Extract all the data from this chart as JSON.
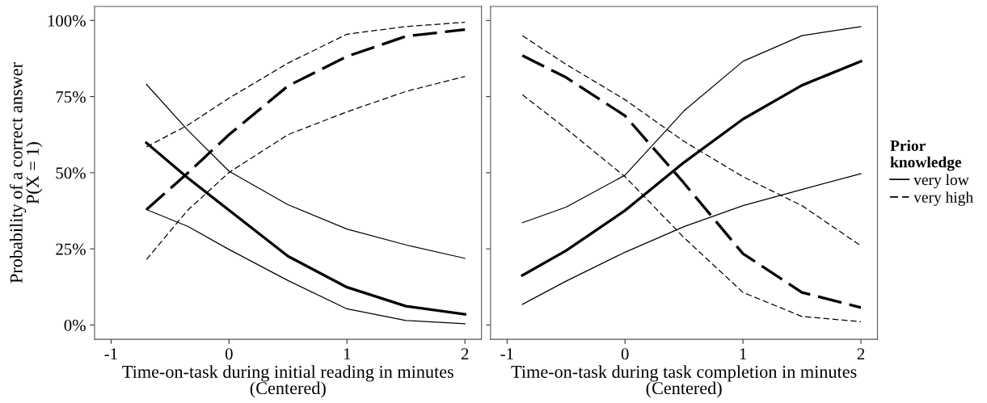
{
  "chart_data": [
    {
      "type": "line",
      "xlabel": "Time-on-task during initial reading in minutes\n(Centered)",
      "ylabel": "Probability of a correct answer\nP(X = 1)",
      "xlim": [
        -1.14,
        2.14
      ],
      "xticks": [
        -1,
        0,
        1,
        2
      ],
      "ylim": [
        -4.7,
        104.6
      ],
      "yticks": [
        {
          "value": 0,
          "label": "0%"
        },
        {
          "value": 25,
          "label": "25%"
        },
        {
          "value": 50,
          "label": "50%"
        },
        {
          "value": 75,
          "label": "75%"
        },
        {
          "value": 100,
          "label": "100%"
        }
      ],
      "grid": false,
      "x": [
        -0.7,
        -0.35,
        0,
        0.5,
        1,
        1.5,
        2
      ],
      "series": [
        {
          "color": "#000000",
          "line_style": "solid",
          "values": [
            59.8,
            48.3,
            37.7,
            22.6,
            12.4,
            6.2,
            3.5
          ]
        },
        {
          "color": "#000000",
          "line_style": "solid",
          "values": [
            37.9,
            32.4,
            24.8,
            14.6,
            5.3,
            1.5,
            0.4
          ]
        },
        {
          "color": "#000000",
          "line_style": "solid",
          "values": [
            79,
            64,
            50.5,
            39.5,
            31.5,
            26.3,
            21.9
          ]
        },
        {
          "color": "#000000",
          "line_style": "dashed",
          "values": [
            37.9,
            49.9,
            62.5,
            78.5,
            88.2,
            94.8,
            97
          ]
        },
        {
          "color": "#000000",
          "line_style": "dashed",
          "values": [
            21.5,
            37.7,
            50.1,
            62.5,
            70,
            76.7,
            81.6
          ]
        },
        {
          "color": "#000000",
          "line_style": "dashed",
          "values": [
            58.5,
            65.6,
            74.5,
            86,
            95.5,
            98,
            99.4
          ]
        }
      ]
    },
    {
      "type": "line",
      "xlabel": "Time-on-task during task completion in minutes\n(Centered)",
      "legend_title": "Prior\nknowledge",
      "xlim": [
        -1.14,
        2.14
      ],
      "xticks": [
        -1,
        0,
        1,
        2
      ],
      "ylim": [
        -4.7,
        104.6
      ],
      "yticks": [
        {
          "value": 0,
          "label": null
        },
        {
          "value": 25,
          "label": null
        },
        {
          "value": 50,
          "label": null
        },
        {
          "value": 75,
          "label": null
        },
        {
          "value": 100,
          "label": null
        }
      ],
      "grid": false,
      "legend": "right",
      "tick_labels": "x",
      "x": [
        -0.87,
        -0.5,
        0,
        0.5,
        1,
        1.5,
        2
      ],
      "series": [
        {
          "name": "very low",
          "color": "#000000",
          "line_style": "solid",
          "values": [
            16.3,
            24.4,
            37.6,
            53.4,
            67.6,
            78.7,
            86.6
          ]
        },
        {
          "color": "#000000",
          "line_style": "solid",
          "values": [
            6.8,
            14.4,
            23.9,
            32.3,
            39.2,
            44.5,
            49.7
          ]
        },
        {
          "color": "#000000",
          "line_style": "solid",
          "values": [
            33.6,
            38.7,
            49.2,
            70.3,
            86.6,
            95,
            98
          ]
        },
        {
          "name": "very high",
          "color": "#000000",
          "line_style": "dashed",
          "values": [
            88.5,
            81.3,
            68.7,
            46.6,
            23.4,
            10.7,
            5.7
          ]
        },
        {
          "color": "#000000",
          "line_style": "dashed",
          "values": [
            75.6,
            64.5,
            48.7,
            28.7,
            10.7,
            2.8,
            1.1
          ]
        },
        {
          "color": "#000000",
          "line_style": "dashed",
          "values": [
            95,
            85.6,
            74,
            60.3,
            48.7,
            39.2,
            26
          ]
        }
      ]
    }
  ]
}
